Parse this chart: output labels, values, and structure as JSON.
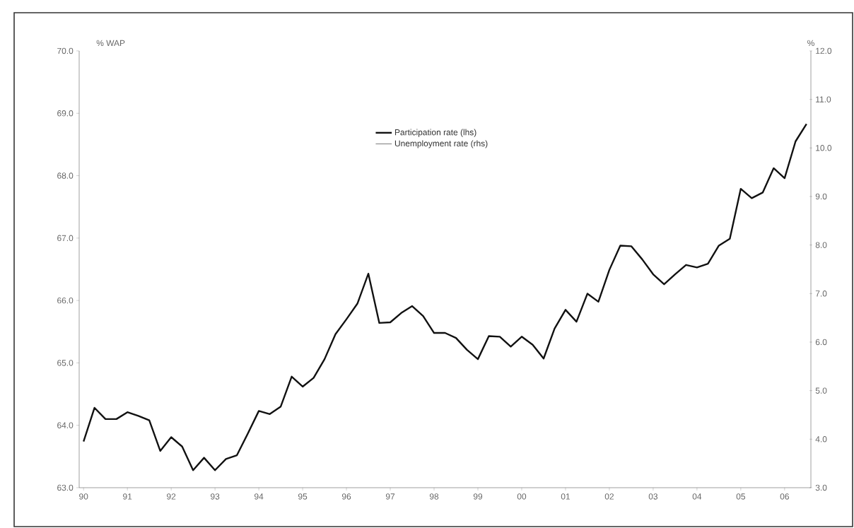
{
  "chart_data": {
    "type": "line",
    "ylabel": "% WAP",
    "y2label": "%",
    "x": [
      1990,
      1990.25,
      1990.5,
      1990.75,
      1991,
      1991.25,
      1991.5,
      1991.75,
      1992,
      1992.25,
      1992.5,
      1992.75,
      1993,
      1993.25,
      1993.5,
      1993.75,
      1994,
      1994.25,
      1994.5,
      1994.75,
      1995,
      1995.25,
      1995.5,
      1995.75,
      1996,
      1996.25,
      1996.5,
      1996.75,
      1997,
      1997.25,
      1997.5,
      1997.75,
      1998,
      1998.25,
      1998.5,
      1998.75,
      1999,
      1999.25,
      1999.5,
      1999.75,
      2000,
      2000.25,
      2000.5,
      2000.75,
      2001,
      2001.25,
      2001.5,
      2001.75,
      2002,
      2002.25,
      2002.5,
      2002.75,
      2003,
      2003.25,
      2003.5,
      2003.75,
      2004,
      2004.25,
      2004.5,
      2004.75,
      2005,
      2005.25,
      2005.5,
      2005.75,
      2006,
      2006.25,
      2006.5
    ],
    "series": [
      {
        "name": "Participation rate (lhs)",
        "color": "#111111",
        "values": [
          63.74,
          64.28,
          64.1,
          64.1,
          64.21,
          64.15,
          64.08,
          63.59,
          63.81,
          63.66,
          63.28,
          63.48,
          63.28,
          63.46,
          63.52,
          63.87,
          64.23,
          64.18,
          64.3,
          64.78,
          64.62,
          64.76,
          65.06,
          65.46,
          65.7,
          65.95,
          66.43,
          65.64,
          65.65,
          65.8,
          65.91,
          65.75,
          65.48,
          65.48,
          65.4,
          65.21,
          65.06,
          65.43,
          65.42,
          65.26,
          65.42,
          65.29,
          65.07,
          65.55,
          65.85,
          65.66,
          66.11,
          65.98,
          66.49,
          66.88,
          66.87,
          66.66,
          66.42,
          66.26,
          66.42,
          66.57,
          66.53,
          66.59,
          66.88,
          66.99,
          67.79,
          67.64,
          67.73,
          68.12,
          67.96,
          68.55,
          68.83
        ]
      },
      {
        "name": "Unemployment rate (rhs)",
        "axis": "y2",
        "values": [
          null,
          null,
          null,
          null,
          null,
          null,
          null,
          null,
          null,
          null,
          null,
          null,
          null,
          null,
          null,
          null,
          null,
          null,
          null,
          null,
          null,
          null,
          null,
          null,
          null,
          null,
          null,
          null,
          null,
          null,
          null,
          null,
          null,
          null,
          null,
          null,
          null,
          null,
          null,
          null,
          null,
          null,
          null,
          null,
          null,
          null,
          null,
          null,
          null,
          null,
          null,
          null,
          null,
          null,
          null,
          null,
          null,
          null,
          null,
          null,
          null,
          null,
          null,
          null,
          null,
          null,
          null
        ]
      }
    ],
    "xlim": [
      1989.9,
      2006.6
    ],
    "xticks": [
      {
        "value": 1990,
        "label": "90"
      },
      {
        "value": 1991,
        "label": "91"
      },
      {
        "value": 1992,
        "label": "92"
      },
      {
        "value": 1993,
        "label": "93"
      },
      {
        "value": 1994,
        "label": "94"
      },
      {
        "value": 1995,
        "label": "95"
      },
      {
        "value": 1996,
        "label": "96"
      },
      {
        "value": 1997,
        "label": "97"
      },
      {
        "value": 1998,
        "label": "98"
      },
      {
        "value": 1999,
        "label": "99"
      },
      {
        "value": 2000,
        "label": "00"
      },
      {
        "value": 2001,
        "label": "01"
      },
      {
        "value": 2002,
        "label": "02"
      },
      {
        "value": 2003,
        "label": "03"
      },
      {
        "value": 2004,
        "label": "04"
      },
      {
        "value": 2005,
        "label": "05"
      },
      {
        "value": 2006,
        "label": "06"
      }
    ],
    "ylim": [
      63,
      70
    ],
    "yticks": [
      {
        "value": 63,
        "label": "63.0"
      },
      {
        "value": 64,
        "label": "64.0"
      },
      {
        "value": 65,
        "label": "65.0"
      },
      {
        "value": 66,
        "label": "66.0"
      },
      {
        "value": 67,
        "label": "67.0"
      },
      {
        "value": 68,
        "label": "68.0"
      },
      {
        "value": 69,
        "label": "69.0"
      },
      {
        "value": 70,
        "label": "70.0"
      }
    ],
    "y2lim": [
      3,
      12
    ],
    "y2ticks": [
      {
        "value": 3,
        "label": "3.0"
      },
      {
        "value": 4,
        "label": "4.0"
      },
      {
        "value": 5,
        "label": "5.0"
      },
      {
        "value": 6,
        "label": "6.0"
      },
      {
        "value": 7,
        "label": "7.0"
      },
      {
        "value": 8,
        "label": "8.0"
      },
      {
        "value": 9,
        "label": "9.0"
      },
      {
        "value": 10,
        "label": "10.0"
      },
      {
        "value": 11,
        "label": "11.0"
      },
      {
        "value": 12,
        "label": "12.0"
      }
    ],
    "legend": "top",
    "marker": "none",
    "line_style": "solid"
  }
}
